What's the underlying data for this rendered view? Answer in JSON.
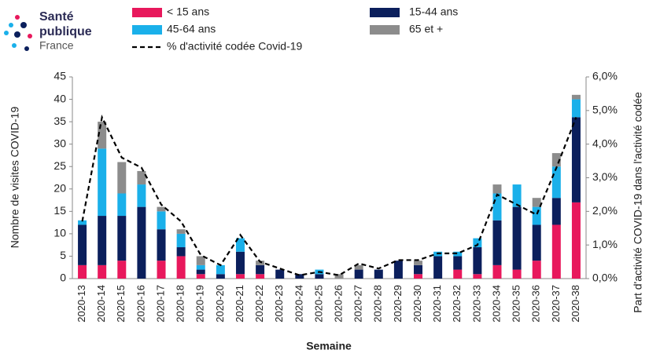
{
  "logo": {
    "line1": "Santé",
    "line2": "publique",
    "line3": "France"
  },
  "chart_data": {
    "type": "bar",
    "stacked": true,
    "y_label": "Nombre de visites COVID-19",
    "y2_label": "Part d'activité COVID-19 dans l'activité codée",
    "x_label": "Semaine",
    "categories": [
      "2020-13",
      "2020-14",
      "2020-15",
      "2020-16",
      "2020-17",
      "2020-18",
      "2020-19",
      "2020-20",
      "2020-21",
      "2020-22",
      "2020-23",
      "2020-24",
      "2020-25",
      "2020-26",
      "2020-27",
      "2020-28",
      "2020-29",
      "2020-30",
      "2020-31",
      "2020-32",
      "2020-33",
      "2020-34",
      "2020-35",
      "2020-36",
      "2020-37",
      "2020-38"
    ],
    "series": [
      {
        "name": "< 15 ans",
        "color": "#e8185c",
        "values": [
          3,
          3,
          4,
          0,
          4,
          5,
          1,
          0,
          1,
          1,
          0,
          0,
          0,
          0,
          0,
          0,
          0,
          1,
          0,
          2,
          1,
          3,
          2,
          4,
          12,
          17
        ]
      },
      {
        "name": "15-44 ans",
        "color": "#0b1f5c",
        "values": [
          9,
          11,
          10,
          16,
          7,
          2,
          1,
          1,
          5,
          2,
          2,
          1,
          1,
          0,
          2,
          2,
          4,
          2,
          5,
          3,
          6,
          10,
          14,
          8,
          6,
          19
        ]
      },
      {
        "name": "45-64 ans",
        "color": "#1ab0ea",
        "values": [
          1,
          15,
          5,
          5,
          4,
          3,
          1,
          2,
          3,
          0,
          0,
          0,
          1,
          0,
          0,
          0,
          0,
          0,
          1,
          1,
          2,
          6,
          5,
          4,
          7,
          4
        ]
      },
      {
        "name": "65 et +",
        "color": "#8c8c8c",
        "values": [
          0,
          6,
          7,
          3,
          1,
          1,
          2,
          0,
          0,
          1,
          0,
          0,
          0,
          1,
          1,
          0,
          0,
          1,
          0,
          0,
          0,
          2,
          0,
          2,
          3,
          1
        ]
      },
      {
        "name": "% d'activité codée Covid-19",
        "type": "line",
        "axis": "y2",
        "dashed": true,
        "color": "#000000",
        "values": [
          1.7,
          4.8,
          3.6,
          3.3,
          2.2,
          1.7,
          0.7,
          0.4,
          1.3,
          0.5,
          0.3,
          0.1,
          0.2,
          0.1,
          0.45,
          0.3,
          0.55,
          0.55,
          0.75,
          0.75,
          1.0,
          2.5,
          2.2,
          1.9,
          3.3,
          4.8
        ]
      }
    ],
    "ylim": [
      0,
      45
    ],
    "yticks": [
      0,
      5,
      10,
      15,
      20,
      25,
      30,
      35,
      40,
      45
    ],
    "y2lim": [
      0,
      6
    ],
    "y2ticks": [
      {
        "value": 0,
        "label": "0,0%"
      },
      {
        "value": 1,
        "label": "1,0%"
      },
      {
        "value": 2,
        "label": "2,0%"
      },
      {
        "value": 3,
        "label": "3,0%"
      },
      {
        "value": 4,
        "label": "4,0%"
      },
      {
        "value": 5,
        "label": "5,0%"
      },
      {
        "value": 6,
        "label": "6,0%"
      }
    ]
  }
}
